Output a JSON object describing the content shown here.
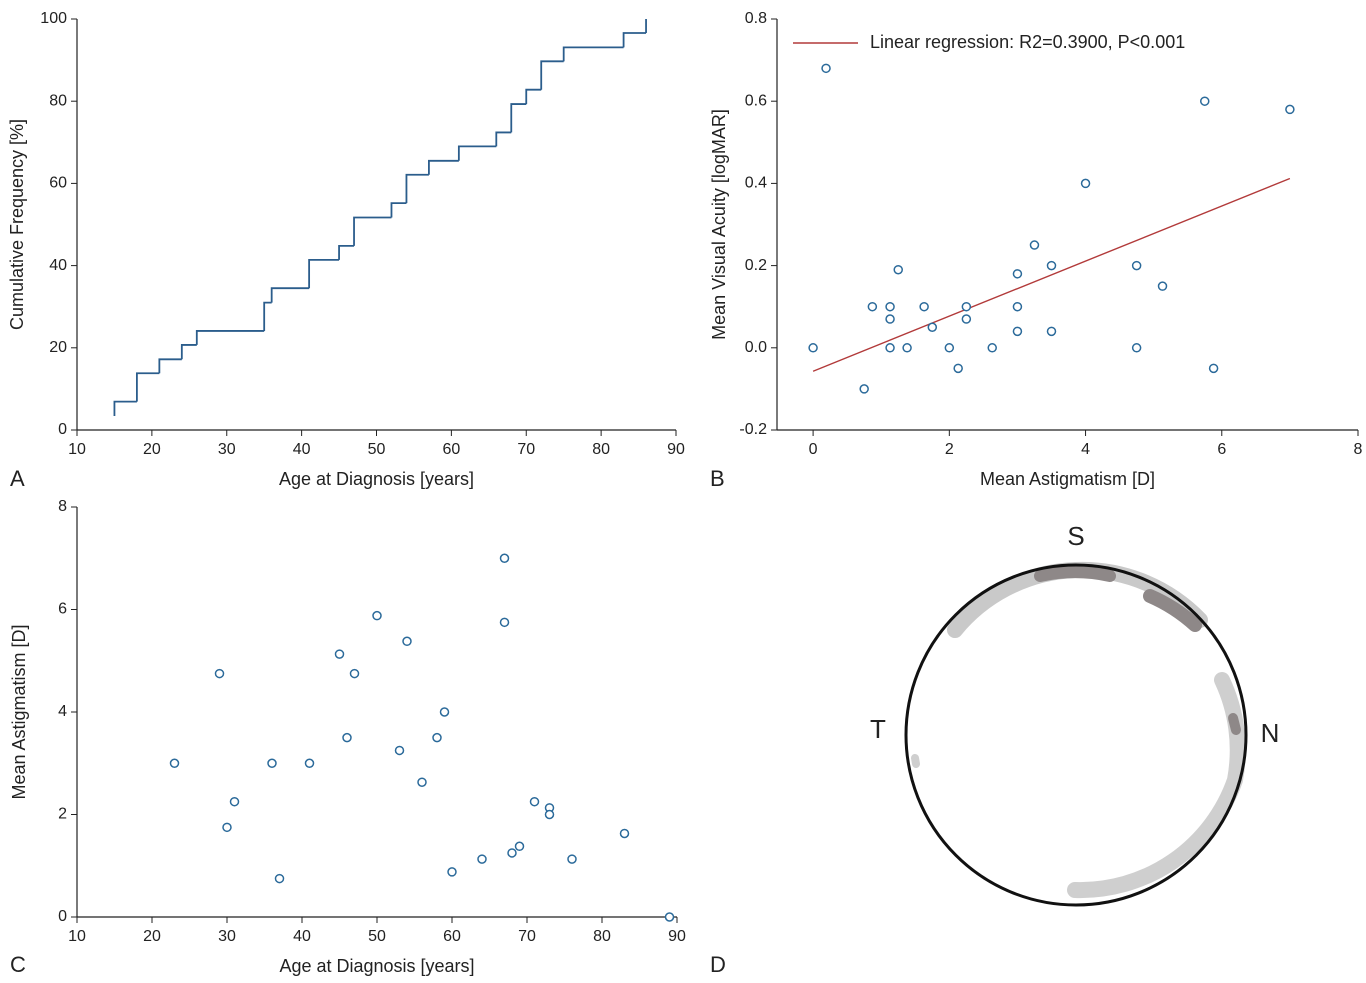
{
  "chart_data": [
    {
      "type": "step",
      "panel": "A",
      "xlabel": "Age at Diagnosis [years]",
      "ylabel": "Cumulative Frequency [%]",
      "x": [
        15,
        15,
        18,
        21,
        24,
        26,
        35,
        36,
        41,
        45,
        47,
        52,
        54,
        57,
        61,
        66,
        68,
        70,
        72,
        75,
        83,
        86
      ],
      "values": [
        3.4,
        6.9,
        13.8,
        17.2,
        20.7,
        24.1,
        31.0,
        34.5,
        41.4,
        44.8,
        51.7,
        55.2,
        62.1,
        65.5,
        69.0,
        72.4,
        79.3,
        82.8,
        89.7,
        93.1,
        96.6,
        100
      ],
      "color": "#2b5d8c",
      "xlim": [
        10,
        90
      ],
      "xticks": [
        10,
        20,
        30,
        40,
        50,
        60,
        70,
        80,
        90
      ],
      "ylim": [
        0,
        100
      ],
      "yticks": [
        0,
        20,
        40,
        60,
        80,
        100
      ],
      "grid": false
    },
    {
      "type": "scatter",
      "panel": "B",
      "xlabel": "Mean Astigmatism [D]",
      "ylabel": "Mean Visual Acuity [logMAR]",
      "x": [
        0,
        0.19,
        0.75,
        0.87,
        1.13,
        1.13,
        1.13,
        1.25,
        1.38,
        1.63,
        1.75,
        2,
        2.13,
        2.25,
        2.25,
        2.63,
        3,
        3,
        3,
        3.25,
        3.5,
        3.5,
        4,
        4.75,
        4.75,
        5.13,
        5.75,
        5.88,
        7
      ],
      "values": [
        0,
        0.68,
        -0.1,
        0.1,
        0.1,
        0.07,
        0,
        0.19,
        0,
        0.1,
        0.05,
        0,
        -0.05,
        0.1,
        0.07,
        0,
        0.18,
        0.1,
        0.04,
        0.25,
        0.2,
        0.04,
        0.4,
        0.2,
        0,
        0.15,
        0.6,
        -0.05,
        0.58
      ],
      "color": "#2b6a9a",
      "fit": {
        "name": "Linear regression: R2=0.3900, P<0.001",
        "x": [
          0,
          7
        ],
        "values": [
          -0.057,
          0.412
        ],
        "color": "#b23a3a"
      },
      "xlim": [
        -0.53,
        8
      ],
      "xticks": [
        0,
        2,
        4,
        6,
        8
      ],
      "ylim": [
        -0.2,
        0.8
      ],
      "yticks": [
        -0.2,
        {
          "value": 0,
          "label": "0.0"
        },
        0.2,
        0.4,
        0.6,
        0.8
      ],
      "grid": false
    },
    {
      "type": "scatter",
      "panel": "C",
      "xlabel": "Age at Diagnosis [years]",
      "ylabel": "Mean Astigmatism [D]",
      "x": [
        23,
        29,
        30,
        31,
        36,
        37,
        41,
        45,
        46,
        47,
        50,
        53,
        54,
        56,
        58,
        59,
        60,
        64,
        67,
        67,
        68,
        69,
        71,
        73,
        73,
        76,
        83,
        89
      ],
      "values": [
        3,
        4.75,
        1.75,
        2.25,
        3,
        0.75,
        3,
        5.13,
        3.5,
        4.75,
        5.88,
        3.25,
        5.38,
        2.63,
        3.5,
        4,
        0.88,
        1.13,
        7,
        5.75,
        1.25,
        1.38,
        2.25,
        2.13,
        2,
        1.13,
        1.63,
        0
      ],
      "color": "#2b6a9a",
      "xlim": [
        10,
        90
      ],
      "xticks": [
        10,
        20,
        30,
        40,
        50,
        60,
        70,
        80,
        90
      ],
      "ylim": [
        0,
        8
      ],
      "yticks": [
        0,
        2,
        4,
        6,
        8
      ],
      "grid": false
    },
    {
      "type": "map",
      "panel": "D",
      "labels": [
        "S",
        "T",
        "N"
      ]
    }
  ]
}
